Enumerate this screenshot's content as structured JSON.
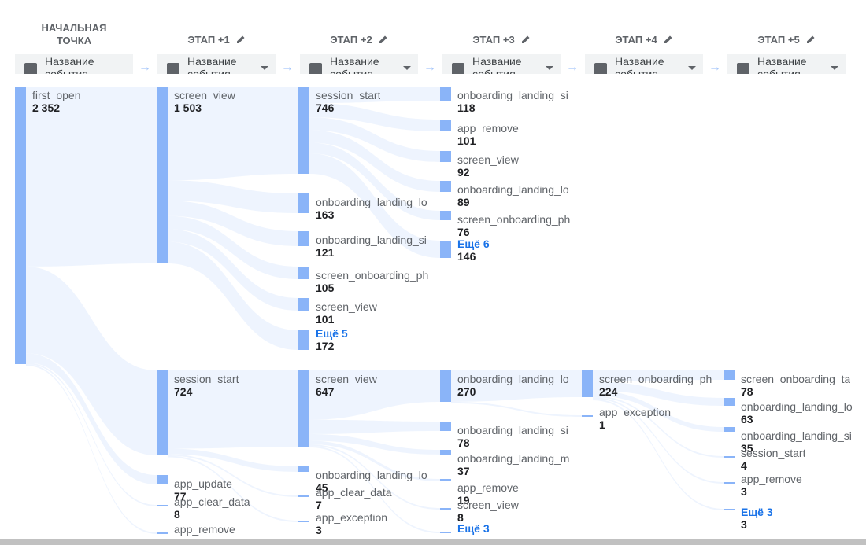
{
  "headers": [
    "НАЧАЛЬНАЯ ТОЧКА",
    "ЭТАП +1",
    "ЭТАП +2",
    "ЭТАП +3",
    "ЭТАП +4",
    "ЭТАП +5"
  ],
  "selector_label": "Название события",
  "more_prefix": "Ещё",
  "colors": {
    "bar": "#8ab4f8",
    "flow": "#e8f0fe",
    "link": "#1a73e8",
    "arrow": "#a8c7fa"
  },
  "chart_data": {
    "type": "sankey",
    "steps": [
      "НАЧАЛЬНАЯ ТОЧКА",
      "ЭТАП +1",
      "ЭТАП +2",
      "ЭТАП +3",
      "ЭТАП +4",
      "ЭТАП +5"
    ],
    "nodes": [
      {
        "id": "n0",
        "step": 0,
        "name": "first_open",
        "value": "2 352"
      },
      {
        "id": "n1a",
        "step": 1,
        "name": "screen_view",
        "value": "1 503"
      },
      {
        "id": "n1b",
        "step": 1,
        "name": "session_start",
        "value": "724"
      },
      {
        "id": "n1c",
        "step": 1,
        "name": "app_update",
        "value": "77"
      },
      {
        "id": "n1d",
        "step": 1,
        "name": "app_clear_data",
        "value": "8"
      },
      {
        "id": "n1e",
        "step": 1,
        "name": "app_remove",
        "value": ""
      },
      {
        "id": "n2a",
        "step": 2,
        "name": "session_start",
        "value": "746"
      },
      {
        "id": "n2b",
        "step": 2,
        "name": "onboarding_landing_lo",
        "value": "163"
      },
      {
        "id": "n2c",
        "step": 2,
        "name": "onboarding_landing_si",
        "value": "121"
      },
      {
        "id": "n2d",
        "step": 2,
        "name": "screen_onboarding_ph",
        "value": "105"
      },
      {
        "id": "n2e",
        "step": 2,
        "name": "screen_view",
        "value": "101"
      },
      {
        "id": "n2f",
        "step": 2,
        "name": "Ещё 5",
        "value": "172",
        "more": true
      },
      {
        "id": "n2g",
        "step": 2,
        "name": "screen_view",
        "value": "647"
      },
      {
        "id": "n2h",
        "step": 2,
        "name": "onboarding_landing_lo",
        "value": "45"
      },
      {
        "id": "n2i",
        "step": 2,
        "name": "app_clear_data",
        "value": "7"
      },
      {
        "id": "n2j",
        "step": 2,
        "name": "app_exception",
        "value": "3"
      },
      {
        "id": "n3a",
        "step": 3,
        "name": "onboarding_landing_si",
        "value": "118"
      },
      {
        "id": "n3b",
        "step": 3,
        "name": "app_remove",
        "value": "101"
      },
      {
        "id": "n3c",
        "step": 3,
        "name": "screen_view",
        "value": "92"
      },
      {
        "id": "n3d",
        "step": 3,
        "name": "onboarding_landing_lo",
        "value": "89"
      },
      {
        "id": "n3e",
        "step": 3,
        "name": "screen_onboarding_ph",
        "value": "76"
      },
      {
        "id": "n3f",
        "step": 3,
        "name": "Ещё 6",
        "value": "146",
        "more": true
      },
      {
        "id": "n3g",
        "step": 3,
        "name": "onboarding_landing_lo",
        "value": "270"
      },
      {
        "id": "n3h",
        "step": 3,
        "name": "onboarding_landing_si",
        "value": "78"
      },
      {
        "id": "n3i",
        "step": 3,
        "name": "onboarding_landing_m",
        "value": "37"
      },
      {
        "id": "n3j",
        "step": 3,
        "name": "app_remove",
        "value": "19"
      },
      {
        "id": "n3k",
        "step": 3,
        "name": "screen_view",
        "value": "8"
      },
      {
        "id": "n3l",
        "step": 3,
        "name": "Ещё 3",
        "value": "",
        "more": true
      },
      {
        "id": "n4a",
        "step": 4,
        "name": "screen_onboarding_ph",
        "value": "224"
      },
      {
        "id": "n4b",
        "step": 4,
        "name": "app_exception",
        "value": "1"
      },
      {
        "id": "n5a",
        "step": 5,
        "name": "screen_onboarding_ta",
        "value": "78"
      },
      {
        "id": "n5b",
        "step": 5,
        "name": "onboarding_landing_lo",
        "value": "63"
      },
      {
        "id": "n5c",
        "step": 5,
        "name": "onboarding_landing_si",
        "value": "35"
      },
      {
        "id": "n5d",
        "step": 5,
        "name": "session_start",
        "value": "4"
      },
      {
        "id": "n5e",
        "step": 5,
        "name": "app_remove",
        "value": "3"
      },
      {
        "id": "n5f",
        "step": 5,
        "name": "Ещё 3",
        "value": "3",
        "more": true
      }
    ],
    "links": [
      {
        "from": "n0",
        "to": "n1a",
        "value": 1503
      },
      {
        "from": "n0",
        "to": "n1b",
        "value": 724
      },
      {
        "from": "n0",
        "to": "n1c",
        "value": 77
      },
      {
        "from": "n0",
        "to": "n1d",
        "value": 8
      },
      {
        "from": "n0",
        "to": "n1e",
        "value": 5
      },
      {
        "from": "n1a",
        "to": "n2a",
        "value": 746
      },
      {
        "from": "n1a",
        "to": "n2b",
        "value": 163
      },
      {
        "from": "n1a",
        "to": "n2c",
        "value": 121
      },
      {
        "from": "n1a",
        "to": "n2d",
        "value": 105
      },
      {
        "from": "n1a",
        "to": "n2e",
        "value": 101
      },
      {
        "from": "n1a",
        "to": "n2f",
        "value": 172
      },
      {
        "from": "n1b",
        "to": "n2g",
        "value": 647
      },
      {
        "from": "n1b",
        "to": "n2h",
        "value": 45
      },
      {
        "from": "n1b",
        "to": "n2i",
        "value": 7
      },
      {
        "from": "n1b",
        "to": "n2j",
        "value": 3
      },
      {
        "from": "n2a",
        "to": "n3a",
        "value": 118
      },
      {
        "from": "n2a",
        "to": "n3b",
        "value": 101
      },
      {
        "from": "n2a",
        "to": "n3c",
        "value": 92
      },
      {
        "from": "n2a",
        "to": "n3d",
        "value": 89
      },
      {
        "from": "n2a",
        "to": "n3e",
        "value": 76
      },
      {
        "from": "n2a",
        "to": "n3f",
        "value": 146
      },
      {
        "from": "n2g",
        "to": "n3g",
        "value": 270
      },
      {
        "from": "n2g",
        "to": "n3h",
        "value": 78
      },
      {
        "from": "n2g",
        "to": "n3i",
        "value": 37
      },
      {
        "from": "n2g",
        "to": "n3j",
        "value": 19
      },
      {
        "from": "n2g",
        "to": "n3k",
        "value": 8
      },
      {
        "from": "n2g",
        "to": "n3l",
        "value": 5
      },
      {
        "from": "n3g",
        "to": "n4a",
        "value": 224
      },
      {
        "from": "n3g",
        "to": "n4b",
        "value": 1
      },
      {
        "from": "n4a",
        "to": "n5a",
        "value": 78
      },
      {
        "from": "n4a",
        "to": "n5b",
        "value": 63
      },
      {
        "from": "n4a",
        "to": "n5c",
        "value": 35
      },
      {
        "from": "n4a",
        "to": "n5d",
        "value": 4
      },
      {
        "from": "n4a",
        "to": "n5e",
        "value": 3
      },
      {
        "from": "n4a",
        "to": "n5f",
        "value": 3
      }
    ]
  }
}
